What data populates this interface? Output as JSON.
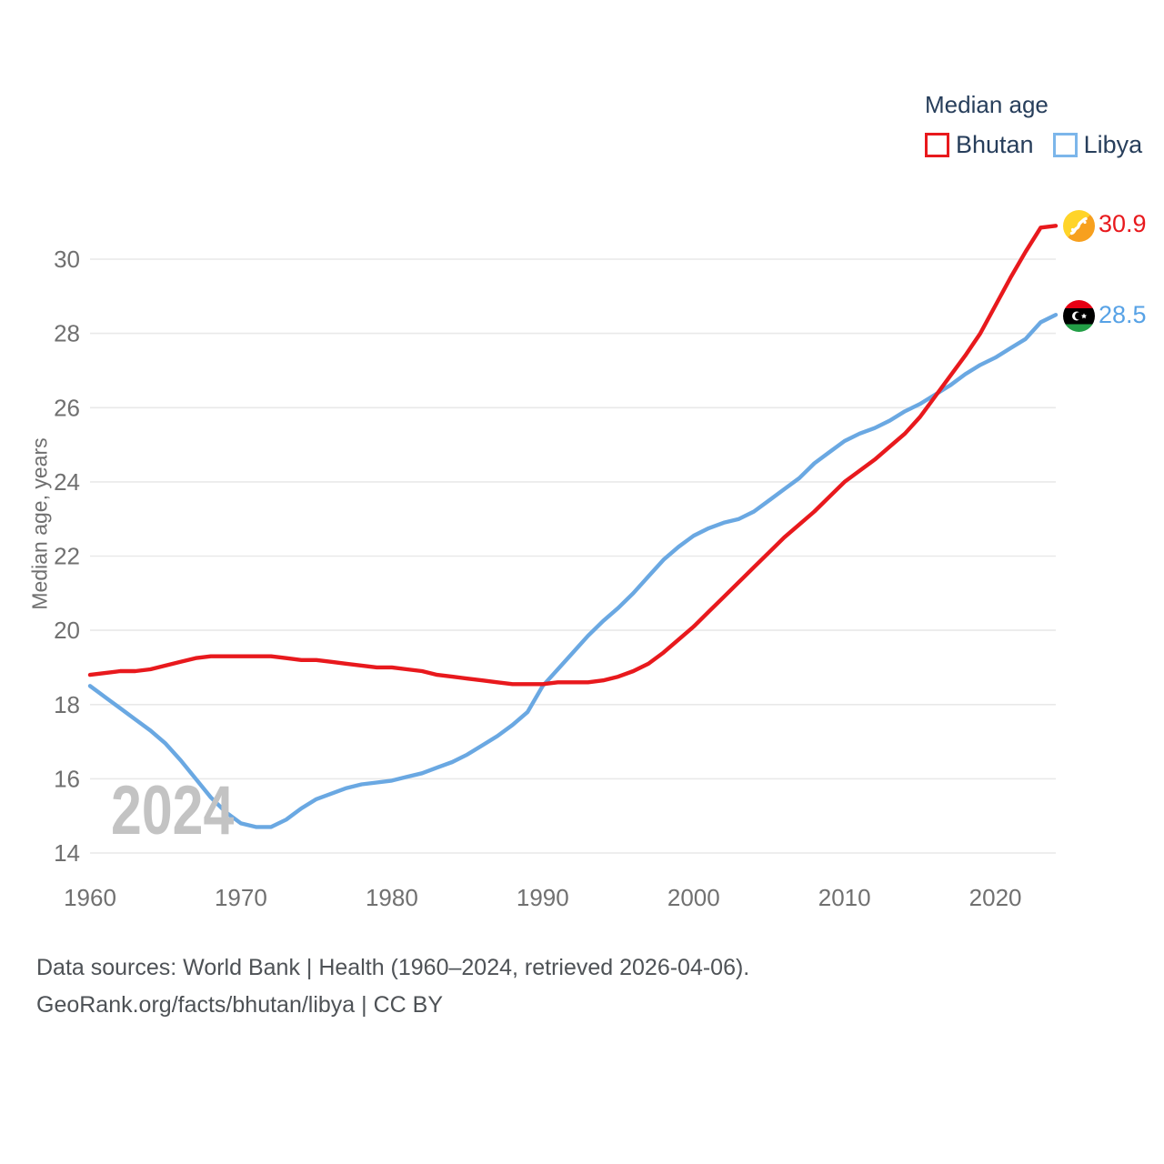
{
  "legend": {
    "title": "Median age",
    "items": [
      {
        "label": "Bhutan",
        "color": "#E8191D"
      },
      {
        "label": "Libya",
        "color": "#7CB6EA"
      }
    ]
  },
  "end_labels": [
    {
      "series": "Bhutan",
      "value": "30.9",
      "color": "#E8191D",
      "flag_icon": "bhutan-flag-icon"
    },
    {
      "series": "Libya",
      "value": "28.5",
      "color": "#57A2E6",
      "flag_icon": "libya-flag-icon"
    }
  ],
  "watermark": "2024",
  "footer": {
    "line1": "Data sources: World Bank | Health (1960–2024, retrieved 2026-04-06).",
    "line2": "GeoRank.org/facts/bhutan/libya | CC BY"
  },
  "colors": {
    "bhutan_line": "#E8191D",
    "libya_line": "#6AA8E2",
    "grid": "#E9E9E9",
    "tick_text": "#707070",
    "legend_text": "#273E5B",
    "footer_text": "#4E5256",
    "watermark": "#C3C3C3"
  },
  "chart_data": {
    "type": "line",
    "title": "Median age",
    "ylabel": "Median age, years",
    "xlabel": "",
    "grid": "horizontal",
    "legend_position": "top-right",
    "xlim": [
      1960,
      2024
    ],
    "ylim": [
      14,
      31.2
    ],
    "x_ticks": [
      1960,
      1970,
      1980,
      1990,
      2000,
      2010,
      2020
    ],
    "y_ticks": [
      14,
      16,
      18,
      20,
      22,
      24,
      26,
      28,
      30
    ],
    "x": [
      1960,
      1961,
      1962,
      1963,
      1964,
      1965,
      1966,
      1967,
      1968,
      1969,
      1970,
      1971,
      1972,
      1973,
      1974,
      1975,
      1976,
      1977,
      1978,
      1979,
      1980,
      1981,
      1982,
      1983,
      1984,
      1985,
      1986,
      1987,
      1988,
      1989,
      1990,
      1991,
      1992,
      1993,
      1994,
      1995,
      1996,
      1997,
      1998,
      1999,
      2000,
      2001,
      2002,
      2003,
      2004,
      2005,
      2006,
      2007,
      2008,
      2009,
      2010,
      2011,
      2012,
      2013,
      2014,
      2015,
      2016,
      2017,
      2018,
      2019,
      2020,
      2021,
      2022,
      2023,
      2024
    ],
    "series": [
      {
        "name": "Bhutan",
        "color": "#E8191D",
        "end_value": 30.9,
        "values": [
          18.8,
          18.85,
          18.9,
          18.9,
          18.95,
          19.05,
          19.15,
          19.25,
          19.3,
          19.3,
          19.3,
          19.3,
          19.3,
          19.25,
          19.2,
          19.2,
          19.15,
          19.1,
          19.05,
          19.0,
          19.0,
          18.95,
          18.9,
          18.8,
          18.75,
          18.7,
          18.65,
          18.6,
          18.55,
          18.55,
          18.55,
          18.6,
          18.6,
          18.6,
          18.65,
          18.75,
          18.9,
          19.1,
          19.4,
          19.75,
          20.1,
          20.5,
          20.9,
          21.3,
          21.7,
          22.1,
          22.5,
          22.85,
          23.2,
          23.6,
          24.0,
          24.3,
          24.6,
          24.95,
          25.3,
          25.75,
          26.3,
          26.85,
          27.4,
          28.0,
          28.75,
          29.5,
          30.2,
          30.85,
          30.9
        ]
      },
      {
        "name": "Libya",
        "color": "#6AA8E2",
        "end_value": 28.5,
        "values": [
          18.5,
          18.2,
          17.9,
          17.6,
          17.3,
          16.95,
          16.5,
          16.0,
          15.5,
          15.1,
          14.8,
          14.7,
          14.7,
          14.9,
          15.2,
          15.45,
          15.6,
          15.75,
          15.85,
          15.9,
          15.95,
          16.05,
          16.15,
          16.3,
          16.45,
          16.65,
          16.9,
          17.15,
          17.45,
          17.8,
          18.5,
          18.95,
          19.4,
          19.85,
          20.25,
          20.6,
          21.0,
          21.45,
          21.9,
          22.25,
          22.55,
          22.75,
          22.9,
          23.0,
          23.2,
          23.5,
          23.8,
          24.1,
          24.5,
          24.8,
          25.1,
          25.3,
          25.45,
          25.65,
          25.9,
          26.1,
          26.35,
          26.6,
          26.9,
          27.15,
          27.35,
          27.6,
          27.85,
          28.3,
          28.5
        ]
      }
    ]
  }
}
